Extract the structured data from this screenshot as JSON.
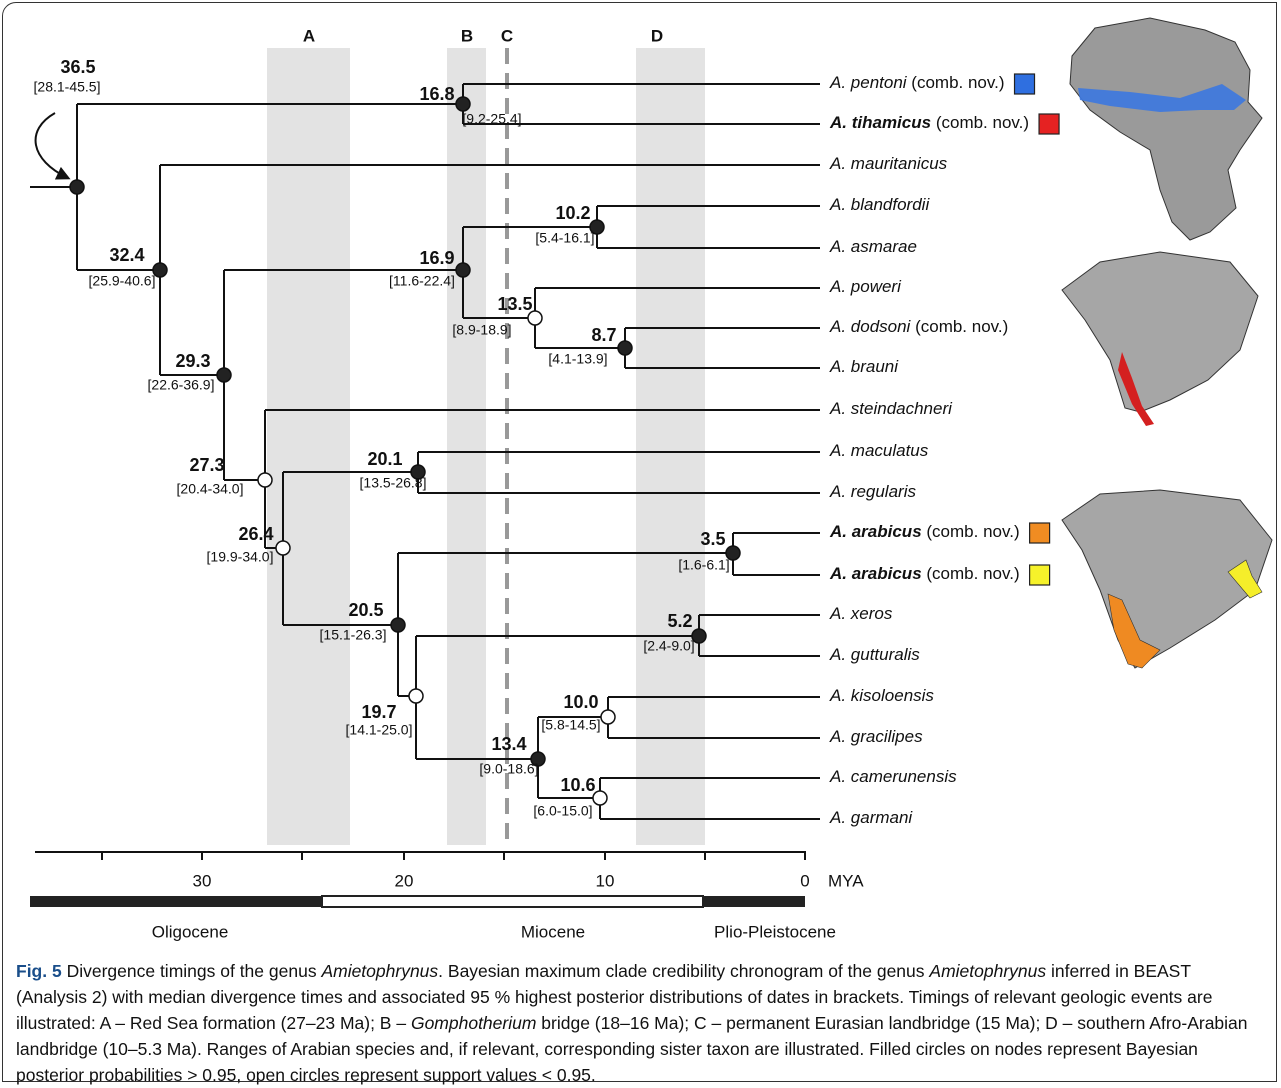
{
  "figure": {
    "bands": [
      {
        "label": "A"
      },
      {
        "label": "B"
      },
      {
        "label": "C"
      },
      {
        "label": "D"
      }
    ],
    "taxa": [
      {
        "name": "A. pentoni",
        "note": "(comb. nov.)",
        "bold": false,
        "marker": "#2f6fe0"
      },
      {
        "name": "A. tihamicus",
        "note": "(comb. nov.)",
        "bold": true,
        "marker": "#e52222"
      },
      {
        "name": "A. mauritanicus",
        "bold": false
      },
      {
        "name": "A. blandfordii",
        "bold": false
      },
      {
        "name": "A. asmarae",
        "bold": false
      },
      {
        "name": "A. poweri",
        "bold": false
      },
      {
        "name": "A. dodsoni",
        "note": "(comb. nov.)",
        "bold": false
      },
      {
        "name": "A. brauni",
        "bold": false
      },
      {
        "name": "A. steindachneri",
        "bold": false
      },
      {
        "name": "A. maculatus",
        "bold": false
      },
      {
        "name": "A. regularis",
        "bold": false
      },
      {
        "name": "A. arabicus",
        "note": "(comb. nov.)",
        "bold": true,
        "marker": "#f08c22"
      },
      {
        "name": "A. arabicus",
        "note": "(comb. nov.)",
        "bold": true,
        "marker": "#f6f22a"
      },
      {
        "name": "A. xeros",
        "bold": false
      },
      {
        "name": "A. gutturalis",
        "bold": false
      },
      {
        "name": "A. kisoloensis",
        "bold": false
      },
      {
        "name": "A. gracilipes",
        "bold": false
      },
      {
        "name": "A. camerunensis",
        "bold": false
      },
      {
        "name": "A. garmani",
        "bold": false
      }
    ],
    "nodes": [
      {
        "age": "36.5",
        "hpd": "[28.1-45.5]",
        "filled": true
      },
      {
        "age": "16.8",
        "hpd": "[9.2-25.4]",
        "filled": true
      },
      {
        "age": "32.4",
        "hpd": "[25.9-40.6]",
        "filled": true
      },
      {
        "age": "29.3",
        "hpd": "[22.6-36.9]",
        "filled": true
      },
      {
        "age": "16.9",
        "hpd": "[11.6-22.4]",
        "filled": true
      },
      {
        "age": "10.2",
        "hpd": "[5.4-16.1]",
        "filled": true
      },
      {
        "age": "27.3",
        "hpd": "[20.4-34.0]",
        "filled": false
      },
      {
        "age": "13.5",
        "hpd": "[8.9-18.9]",
        "filled": false
      },
      {
        "age": "8.7",
        "hpd": "[4.1-13.9]",
        "filled": true
      },
      {
        "age": "26.4",
        "hpd": "[19.9-34.0]",
        "filled": false
      },
      {
        "age": "20.1",
        "hpd": "[13.5-26.8]",
        "filled": true
      },
      {
        "age": "20.5",
        "hpd": "[15.1-26.3]",
        "filled": true
      },
      {
        "age": "3.5",
        "hpd": "[1.6-6.1]",
        "filled": true
      },
      {
        "age": "19.7",
        "hpd": "[14.1-25.0]",
        "filled": false
      },
      {
        "age": "5.2",
        "hpd": "[2.4-9.0]",
        "filled": true
      },
      {
        "age": "13.4",
        "hpd": "[9.0-18.6]",
        "filled": true
      },
      {
        "age": "10.0",
        "hpd": "[5.8-14.5]",
        "filled": false
      },
      {
        "age": "10.6",
        "hpd": "[6.0-15.0]",
        "filled": false
      }
    ],
    "axis": {
      "ticks": [
        "30",
        "20",
        "10",
        "0"
      ],
      "unit": "MYA"
    },
    "epochs": [
      "Oligocene",
      "Miocene",
      "Plio-Pleistocene"
    ]
  },
  "caption": {
    "runs": [
      {
        "text": "Fig. 5",
        "style": "bold"
      },
      {
        "text": " Divergence timings of the genus ",
        "style": "plain"
      },
      {
        "text": "Amietophrynus",
        "style": "italic"
      },
      {
        "text": ". Bayesian maximum clade credibility chronogram of the genus ",
        "style": "plain"
      },
      {
        "text": "Amietophrynus",
        "style": "italic"
      },
      {
        "text": " inferred in BEAST (Analysis 2) with median divergence times and associated 95 % highest posterior distributions of dates in brackets. Timings of relevant geologic events are illustrated: A – Red Sea formation (27–23 Ma); B – ",
        "style": "plain"
      },
      {
        "text": "Gomphotherium",
        "style": "italic"
      },
      {
        "text": " bridge (18–16 Ma); C – permanent Eurasian landbridge (15 Ma); D – southern Afro-Arabian landbridge (10–5.3 Ma). Ranges of Arabian species and, if relevant, corresponding sister taxon are illustrated. Filled circles on nodes represent Bayesian posterior probabilities > 0.95, open circles represent support values < 0.95.",
        "style": "plain"
      }
    ]
  }
}
